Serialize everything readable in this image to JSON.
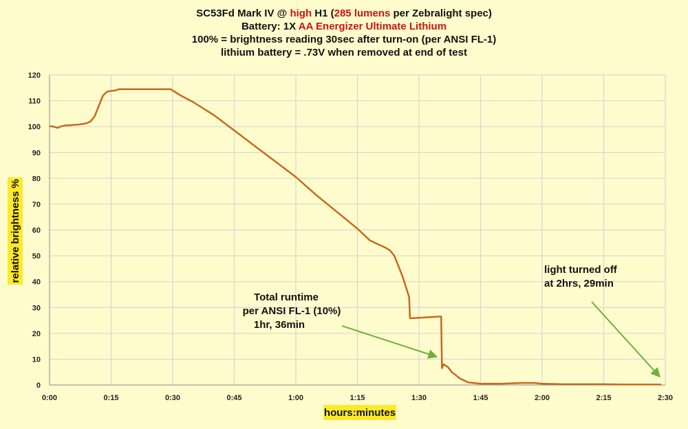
{
  "chart_data": {
    "type": "line",
    "title_lines": [
      [
        {
          "text": "SC53Fd Mark IV @ ",
          "color": "#111111"
        },
        {
          "text": "high",
          "color": "#d01212"
        },
        {
          "text": " H1 (",
          "color": "#111111"
        },
        {
          "text": "285 lumens",
          "color": "#d01212"
        },
        {
          "text": " per Zebralight spec)",
          "color": "#111111"
        }
      ],
      [
        {
          "text": "Battery:  1X ",
          "color": "#111111"
        },
        {
          "text": "AA Energizer Ultimate Lithium",
          "color": "#d01212"
        }
      ],
      [
        {
          "text": "100% = brightness reading 30sec after turn-on (per ANSI FL-1)",
          "color": "#111111"
        }
      ],
      [
        {
          "text": "lithium battery = .73V when removed at end of test",
          "color": "#111111"
        }
      ]
    ],
    "xlabel": "hours:minutes",
    "ylabel": "relative brightness %",
    "xlim": [
      0,
      150
    ],
    "ylim": [
      0,
      120
    ],
    "x_ticks": [
      0,
      15,
      30,
      45,
      60,
      75,
      90,
      105,
      120,
      135,
      150
    ],
    "x_tick_labels": [
      "0:00",
      "0:15",
      "0:30",
      "0:45",
      "1:00",
      "1:15",
      "1:30",
      "1:45",
      "2:00",
      "2:15",
      "2:30"
    ],
    "y_ticks": [
      0,
      10,
      20,
      30,
      40,
      50,
      60,
      70,
      80,
      90,
      100,
      110,
      120
    ],
    "y_tick_labels": [
      "0",
      "10",
      "20",
      "30",
      "40",
      "50",
      "60",
      "70",
      "80",
      "90",
      "100",
      "110",
      "120"
    ],
    "grid": true,
    "series": [
      {
        "color": "#c8691e",
        "x": [
          0,
          1,
          2,
          3,
          4,
          5,
          6,
          7,
          8,
          9,
          10,
          11,
          12,
          13,
          14,
          15,
          16,
          17,
          18,
          20,
          25,
          29.5,
          30,
          32,
          35,
          40,
          45,
          50,
          55,
          60,
          65,
          70,
          75,
          78,
          80,
          82,
          83,
          84,
          85,
          86,
          87,
          87.6,
          87.8,
          90,
          95,
          95.4,
          95.6,
          96,
          97,
          98,
          100,
          102,
          105,
          110,
          115,
          118,
          120,
          125,
          130,
          135,
          140,
          145,
          149
        ],
        "y": [
          100.2,
          100,
          99.5,
          100.2,
          100.5,
          100.5,
          100.7,
          100.8,
          101,
          101.3,
          102,
          104,
          108,
          112,
          113.5,
          113.8,
          114,
          114.5,
          114.5,
          114.5,
          114.5,
          114.5,
          114,
          112,
          109.5,
          104.5,
          98.5,
          92.5,
          86.5,
          80.5,
          73.5,
          67,
          60.5,
          56,
          54.5,
          53,
          52,
          50,
          46,
          42,
          37,
          34,
          25.8,
          26,
          26.5,
          26.5,
          6.5,
          8,
          7,
          5,
          2.5,
          1,
          0.5,
          0.5,
          0.8,
          0.8,
          0.5,
          0.3,
          0.3,
          0.3,
          0.2,
          0.2,
          0.2
        ]
      }
    ],
    "annotations": [
      {
        "lines": [
          "Total runtime",
          "per ANSI FL-1 (10%)",
          "1hr, 36min"
        ],
        "arrow_from": [
          240.3,
          13.2
        ],
        "arrow_to": [
          96,
          10
        ]
      },
      {
        "lines": [
          "light turned off",
          "at 2hrs, 29min"
        ],
        "arrow_from": [
          138.2,
          32
        ],
        "arrow_to": [
          149,
          3
        ]
      }
    ]
  }
}
